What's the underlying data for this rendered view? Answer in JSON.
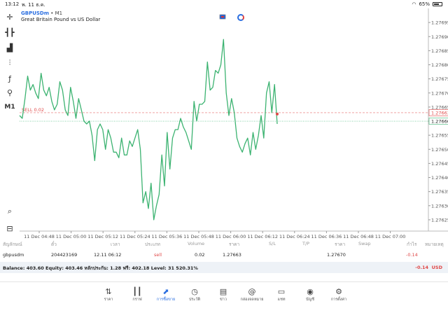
{
  "status_bar": {
    "time": "13:12",
    "date": "พ. 11 ธ.ค.",
    "battery": "65%"
  },
  "chart": {
    "symbol": "GBPUSDm",
    "timeframe": "M1",
    "description": "Great Britain Pound vs US Dollar",
    "toolbar_timeframe": "M1",
    "sell_label": "SELL 0.02",
    "current_price_label": "1.27660",
    "sell_price_label": "1.27663"
  },
  "chart_data": {
    "type": "line",
    "x_ticks": [
      "11 Dec 04:48",
      "11 Dec 05:00",
      "11 Dec 05:12",
      "11 Dec 05:24",
      "11 Dec 05:36",
      "11 Dec 05:48",
      "11 Dec 06:00",
      "11 Dec 06:12",
      "11 Dec 06:24",
      "11 Dec 06:36",
      "11 Dec 06:48",
      "11 Dec 07:00"
    ],
    "y_ticks": [
      "1.27695",
      "1.27690",
      "1.27685",
      "1.27680",
      "1.27675",
      "1.27670",
      "1.27665",
      "1.27660",
      "1.27655",
      "1.27650",
      "1.27645",
      "1.27640",
      "1.27635",
      "1.27630",
      "1.27625"
    ],
    "ylim": [
      1.27621,
      1.277
    ],
    "sell_level": 1.27663,
    "current_price": 1.2766,
    "series": [
      {
        "values": [
          1.27662,
          1.27661,
          1.27668,
          1.27676,
          1.27671,
          1.27673,
          1.2767,
          1.27668,
          1.27677,
          1.27671,
          1.27669,
          1.27672,
          1.27667,
          1.27664,
          1.27666,
          1.27674,
          1.27671,
          1.27664,
          1.27662,
          1.27672,
          1.27667,
          1.27661,
          1.27668,
          1.27664,
          1.2766,
          1.27659,
          1.2766,
          1.27655,
          1.27646,
          1.27657,
          1.27659,
          1.27657,
          1.2765,
          1.27657,
          1.27654,
          1.27649,
          1.27649,
          1.27647,
          1.27654,
          1.27648,
          1.27648,
          1.27653,
          1.27651,
          1.27654,
          1.27657,
          1.2765,
          1.27631,
          1.27635,
          1.27629,
          1.27638,
          1.27625,
          1.2763,
          1.27634,
          1.27648,
          1.27637,
          1.27656,
          1.27643,
          1.27654,
          1.27657,
          1.27657,
          1.27661,
          1.27658,
          1.27656,
          1.27653,
          1.2765,
          1.27667,
          1.2766,
          1.27666,
          1.27666,
          1.27667,
          1.27681,
          1.27671,
          1.27672,
          1.27678,
          1.27677,
          1.2768,
          1.27689,
          1.2767,
          1.27662,
          1.27668,
          1.27663,
          1.27654,
          1.27651,
          1.27649,
          1.27652,
          1.27654,
          1.27648,
          1.27656,
          1.2765,
          1.27655,
          1.27662,
          1.27654,
          1.2767,
          1.27674,
          1.27663,
          1.27673,
          1.27659
        ]
      }
    ]
  },
  "positions": {
    "headers": [
      "สัญลักษณ์",
      "ตั๋ว",
      "เวลา",
      "ประเภท",
      "Volume",
      "ราคา",
      "S/L",
      "T/P",
      "ราคา",
      "Swap",
      "กำไร",
      "หมายเหตุ"
    ],
    "row": {
      "symbol": "gbpusdm",
      "ticket": "204423169",
      "time": "12.11 06:12",
      "type": "sell",
      "volume": "0.02",
      "open_price": "1.27663",
      "current_price": "1.27670",
      "profit": "-0.14"
    },
    "balance_text": "Balance: 403.60 Equity: 403.46 หลักประกัน: 1.28 ฟรี: 402.18 Level: 31 520.31%",
    "balance_profit": "-0.14",
    "balance_currency": "USD"
  },
  "nav": {
    "items": [
      {
        "label": "ราคา",
        "icon": "quotes-icon"
      },
      {
        "label": "กราฟ",
        "icon": "chart-icon"
      },
      {
        "label": "การซื้อขาย",
        "icon": "trade-icon"
      },
      {
        "label": "ประวัติ",
        "icon": "history-icon"
      },
      {
        "label": "ข่าว",
        "icon": "news-icon"
      },
      {
        "label": "กล่องจดหมาย",
        "icon": "mailbox-icon"
      },
      {
        "label": "แชท",
        "icon": "chat-icon"
      },
      {
        "label": "บัญชี",
        "icon": "account-icon"
      },
      {
        "label": "การตั้งค่า",
        "icon": "settings-icon"
      }
    ],
    "active_index": 2
  },
  "colors": {
    "line": "#3cb371",
    "sell": "#e04848",
    "accent": "#2a6ee0",
    "grid": "#d8d8d8"
  }
}
